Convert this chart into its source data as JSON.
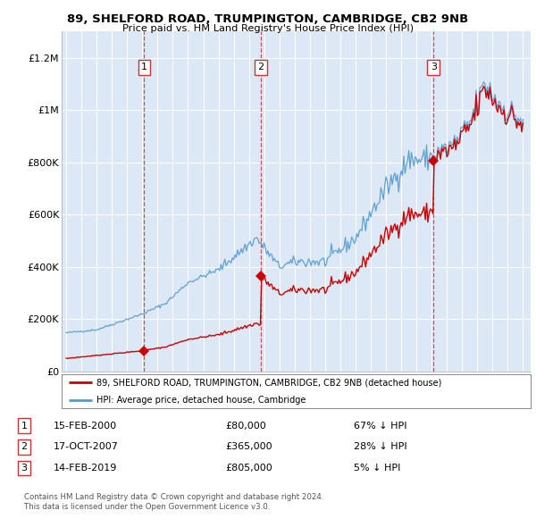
{
  "title_line1": "89, SHELFORD ROAD, TRUMPINGTON, CAMBRIDGE, CB2 9NB",
  "title_line2": "Price paid vs. HM Land Registry's House Price Index (HPI)",
  "plot_bg_color": "#dce8f5",
  "ylim": [
    0,
    1300000
  ],
  "xlim_start": 1994.7,
  "xlim_end": 2025.5,
  "yticks": [
    0,
    200000,
    400000,
    600000,
    800000,
    1000000,
    1200000
  ],
  "ytick_labels": [
    "£0",
    "£200K",
    "£400K",
    "£600K",
    "£800K",
    "£1M",
    "£1.2M"
  ],
  "sales": [
    {
      "num": 1,
      "date_str": "15-FEB-2000",
      "year": 2000.12,
      "price": 80000,
      "pct": "67%",
      "dir": "↓"
    },
    {
      "num": 2,
      "date_str": "17-OCT-2007",
      "year": 2007.79,
      "price": 365000,
      "pct": "28%",
      "dir": "↓"
    },
    {
      "num": 3,
      "date_str": "14-FEB-2019",
      "year": 2019.12,
      "price": 805000,
      "pct": "5%",
      "dir": "↓"
    }
  ],
  "legend_red_label": "89, SHELFORD ROAD, TRUMPINGTON, CAMBRIDGE, CB2 9NB (detached house)",
  "legend_blue_label": "HPI: Average price, detached house, Cambridge",
  "footer_line1": "Contains HM Land Registry data © Crown copyright and database right 2024.",
  "footer_line2": "This data is licensed under the Open Government Licence v3.0.",
  "red_color": "#cc0000",
  "blue_color": "#5599cc",
  "dashed_color": "#cc3333"
}
